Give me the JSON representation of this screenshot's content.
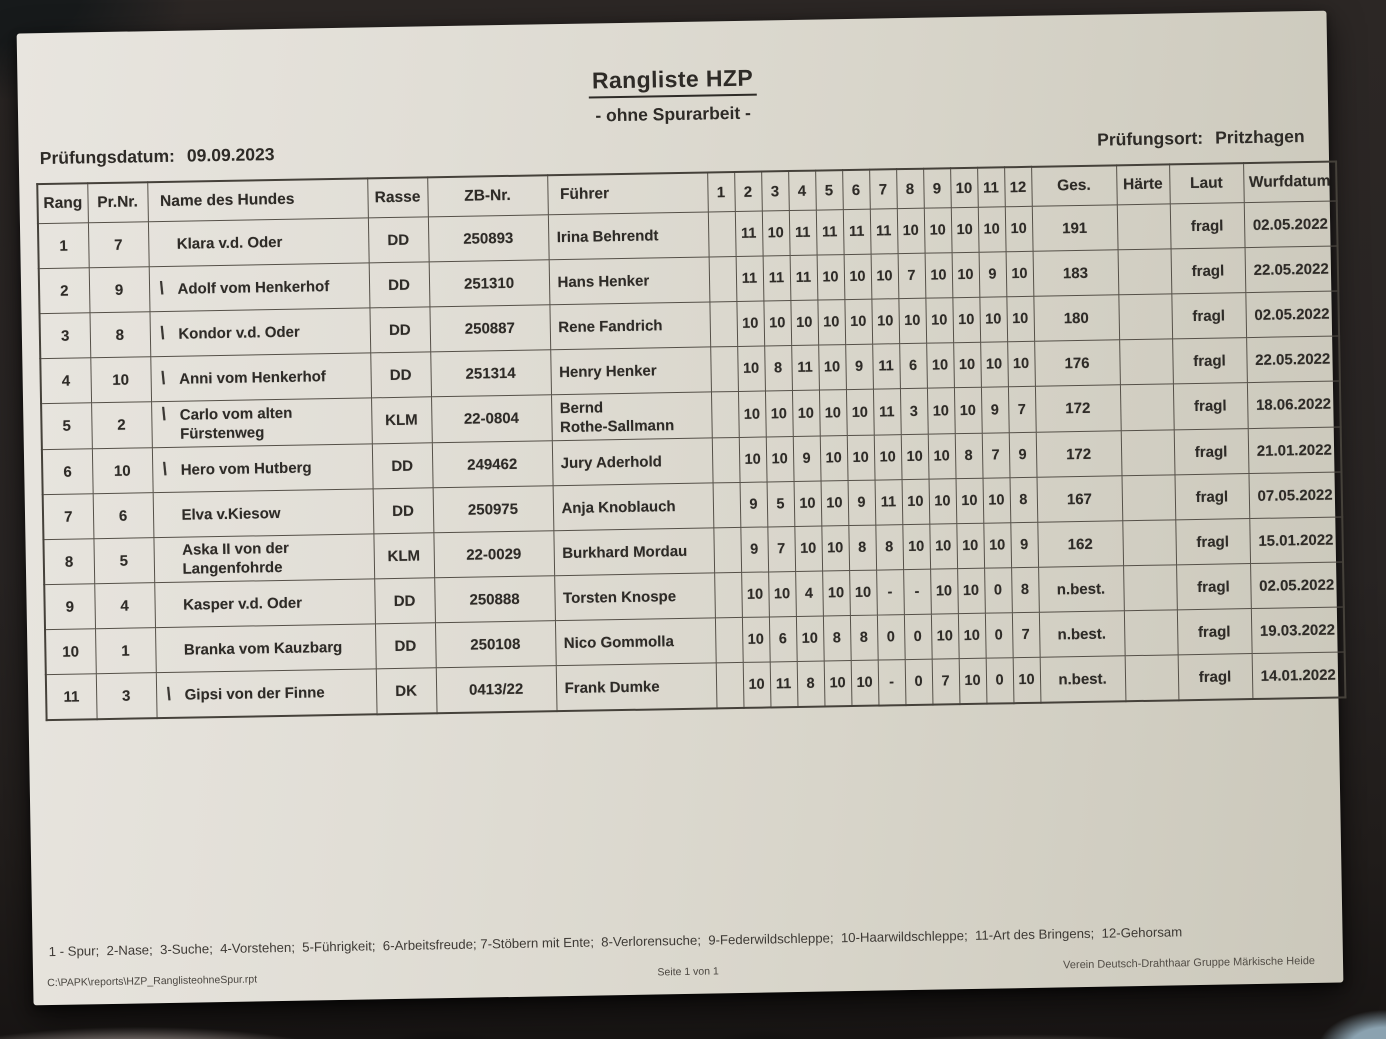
{
  "page": {
    "title": "Rangliste HZP",
    "subtitle": "- ohne Spurarbeit -",
    "date_label": "Prüfungsdatum:",
    "date_value": "09.09.2023",
    "location_label": "Prüfungsort:",
    "location_value": "Pritzhagen"
  },
  "table": {
    "headers": [
      "Rang",
      "Pr.Nr.",
      "Name des Hundes",
      "Rasse",
      "ZB-Nr.",
      "Führer",
      "1",
      "2",
      "3",
      "4",
      "5",
      "6",
      "7",
      "8",
      "9",
      "10",
      "11",
      "12",
      "Ges.",
      "Härte",
      "Laut",
      "Wurfdatum"
    ],
    "rows": [
      {
        "rang": "1",
        "prnr": "7",
        "mark": "",
        "name": "Klara v.d. Oder",
        "name2": "",
        "rasse": "DD",
        "zbnr": "250893",
        "fuehrer": "Irina Behrendt",
        "fuehrer2": "",
        "scores": [
          "",
          "11",
          "10",
          "11",
          "11",
          "11",
          "11",
          "10",
          "10",
          "10",
          "10",
          "10"
        ],
        "ges": "191",
        "haerte": "",
        "laut": "fragl",
        "wurfdatum": "02.05.2022"
      },
      {
        "rang": "2",
        "prnr": "9",
        "mark": "\\",
        "name": "Adolf vom Henkerhof",
        "name2": "",
        "rasse": "DD",
        "zbnr": "251310",
        "fuehrer": "Hans Henker",
        "fuehrer2": "",
        "scores": [
          "",
          "11",
          "11",
          "11",
          "10",
          "10",
          "10",
          "7",
          "10",
          "10",
          "9",
          "10"
        ],
        "ges": "183",
        "haerte": "",
        "laut": "fragl",
        "wurfdatum": "22.05.2022"
      },
      {
        "rang": "3",
        "prnr": "8",
        "mark": "\\",
        "name": "Kondor v.d. Oder",
        "name2": "",
        "rasse": "DD",
        "zbnr": "250887",
        "fuehrer": "Rene Fandrich",
        "fuehrer2": "",
        "scores": [
          "",
          "10",
          "10",
          "10",
          "10",
          "10",
          "10",
          "10",
          "10",
          "10",
          "10",
          "10"
        ],
        "ges": "180",
        "haerte": "",
        "laut": "fragl",
        "wurfdatum": "02.05.2022"
      },
      {
        "rang": "4",
        "prnr": "10",
        "mark": "\\",
        "name": "Anni vom Henkerhof",
        "name2": "",
        "rasse": "DD",
        "zbnr": "251314",
        "fuehrer": "Henry Henker",
        "fuehrer2": "",
        "scores": [
          "",
          "10",
          "8",
          "11",
          "10",
          "9",
          "11",
          "6",
          "10",
          "10",
          "10",
          "10"
        ],
        "ges": "176",
        "haerte": "",
        "laut": "fragl",
        "wurfdatum": "22.05.2022"
      },
      {
        "rang": "5",
        "prnr": "2",
        "mark": "\\",
        "name": "Carlo vom alten",
        "name2": "Fürstenweg",
        "rasse": "KLM",
        "zbnr": "22-0804",
        "fuehrer": "Bernd",
        "fuehrer2": "Rothe-Sallmann",
        "scores": [
          "",
          "10",
          "10",
          "10",
          "10",
          "10",
          "11",
          "3",
          "10",
          "10",
          "9",
          "7"
        ],
        "ges": "172",
        "haerte": "",
        "laut": "fragl",
        "wurfdatum": "18.06.2022"
      },
      {
        "rang": "6",
        "prnr": "10",
        "mark": "\\",
        "name": "Hero vom Hutberg",
        "name2": "",
        "rasse": "DD",
        "zbnr": "249462",
        "fuehrer": "Jury Aderhold",
        "fuehrer2": "",
        "scores": [
          "",
          "10",
          "10",
          "9",
          "10",
          "10",
          "10",
          "10",
          "10",
          "8",
          "7",
          "9"
        ],
        "ges": "172",
        "haerte": "",
        "laut": "fragl",
        "wurfdatum": "21.01.2022"
      },
      {
        "rang": "7",
        "prnr": "6",
        "mark": "",
        "name": "Elva v.Kiesow",
        "name2": "",
        "rasse": "DD",
        "zbnr": "250975",
        "fuehrer": "Anja Knoblauch",
        "fuehrer2": "",
        "scores": [
          "",
          "9",
          "5",
          "10",
          "10",
          "9",
          "11",
          "10",
          "10",
          "10",
          "10",
          "8"
        ],
        "ges": "167",
        "haerte": "",
        "laut": "fragl",
        "wurfdatum": "07.05.2022"
      },
      {
        "rang": "8",
        "prnr": "5",
        "mark": "",
        "name": "Aska II von der",
        "name2": "Langenfohrde",
        "rasse": "KLM",
        "zbnr": "22-0029",
        "fuehrer": "Burkhard Mordau",
        "fuehrer2": "",
        "scores": [
          "",
          "9",
          "7",
          "10",
          "10",
          "8",
          "8",
          "10",
          "10",
          "10",
          "10",
          "9"
        ],
        "ges": "162",
        "haerte": "",
        "laut": "fragl",
        "wurfdatum": "15.01.2022"
      },
      {
        "rang": "9",
        "prnr": "4",
        "mark": "",
        "name": "Kasper v.d. Oder",
        "name2": "",
        "rasse": "DD",
        "zbnr": "250888",
        "fuehrer": "Torsten Knospe",
        "fuehrer2": "",
        "scores": [
          "",
          "10",
          "10",
          "4",
          "10",
          "10",
          "-",
          "-",
          "10",
          "10",
          "0",
          "8"
        ],
        "ges": "n.best.",
        "haerte": "",
        "laut": "fragl",
        "wurfdatum": "02.05.2022"
      },
      {
        "rang": "10",
        "prnr": "1",
        "mark": "",
        "name": "Branka vom Kauzbarg",
        "name2": "",
        "rasse": "DD",
        "zbnr": "250108",
        "fuehrer": "Nico Gommolla",
        "fuehrer2": "",
        "scores": [
          "",
          "10",
          "6",
          "10",
          "8",
          "8",
          "0",
          "0",
          "10",
          "10",
          "0",
          "7"
        ],
        "ges": "n.best.",
        "haerte": "",
        "laut": "fragl",
        "wurfdatum": "19.03.2022"
      },
      {
        "rang": "11",
        "prnr": "3",
        "mark": "\\",
        "name": "Gipsi von der Finne",
        "name2": "",
        "rasse": "DK",
        "zbnr": "0413/22",
        "fuehrer": "Frank Dumke",
        "fuehrer2": "",
        "scores": [
          "",
          "10",
          "11",
          "8",
          "10",
          "10",
          "-",
          "0",
          "7",
          "10",
          "0",
          "10"
        ],
        "ges": "n.best.",
        "haerte": "",
        "laut": "fragl",
        "wurfdatum": "14.01.2022"
      }
    ]
  },
  "footer": {
    "legend": "1 - Spur;  2-Nase;  3-Suche;  4-Vorstehen;  5-Führigkeit;  6-Arbeitsfreude; 7-Stöbern mit Ente;  8-Verlorensuche;  9-Federwildschleppe;  10-Haarwildschleppe;  11-Art des Bringens;  12-Gehorsam",
    "file_path": "C:\\PAPK\\reports\\HZP_RanglisteohneSpur.rpt",
    "page_info": "Seite 1 von 1",
    "organization": "Verein Deutsch-Drahthaar Gruppe Märkische Heide"
  }
}
